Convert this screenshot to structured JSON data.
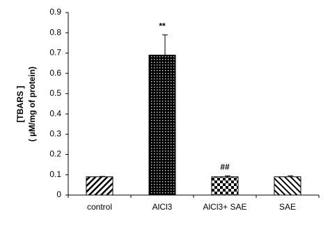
{
  "chart_data": {
    "type": "bar",
    "y_label_lines": [
      "[TBARS ]",
      "( µM/mg of protein)"
    ],
    "categories": [
      "control",
      "AlCl3",
      "AlCl3+ SAE",
      "SAE"
    ],
    "values": [
      0.09,
      0.69,
      0.09,
      0.09
    ],
    "errors": [
      0.002,
      0.1,
      0.005,
      0.005
    ],
    "patterns": [
      "diagonal-up",
      "dots",
      "checker",
      "diagonal-down"
    ],
    "color": "#000000",
    "annotations": [
      {
        "text": "**",
        "category": "AlCl3"
      },
      {
        "text": "##",
        "category": "AlCl3+ SAE"
      }
    ],
    "ylim": [
      0,
      0.9
    ],
    "yticks": [
      0,
      0.1,
      0.2,
      0.3,
      0.4,
      0.5,
      0.6,
      0.7,
      0.8,
      0.9
    ],
    "grid": false
  }
}
